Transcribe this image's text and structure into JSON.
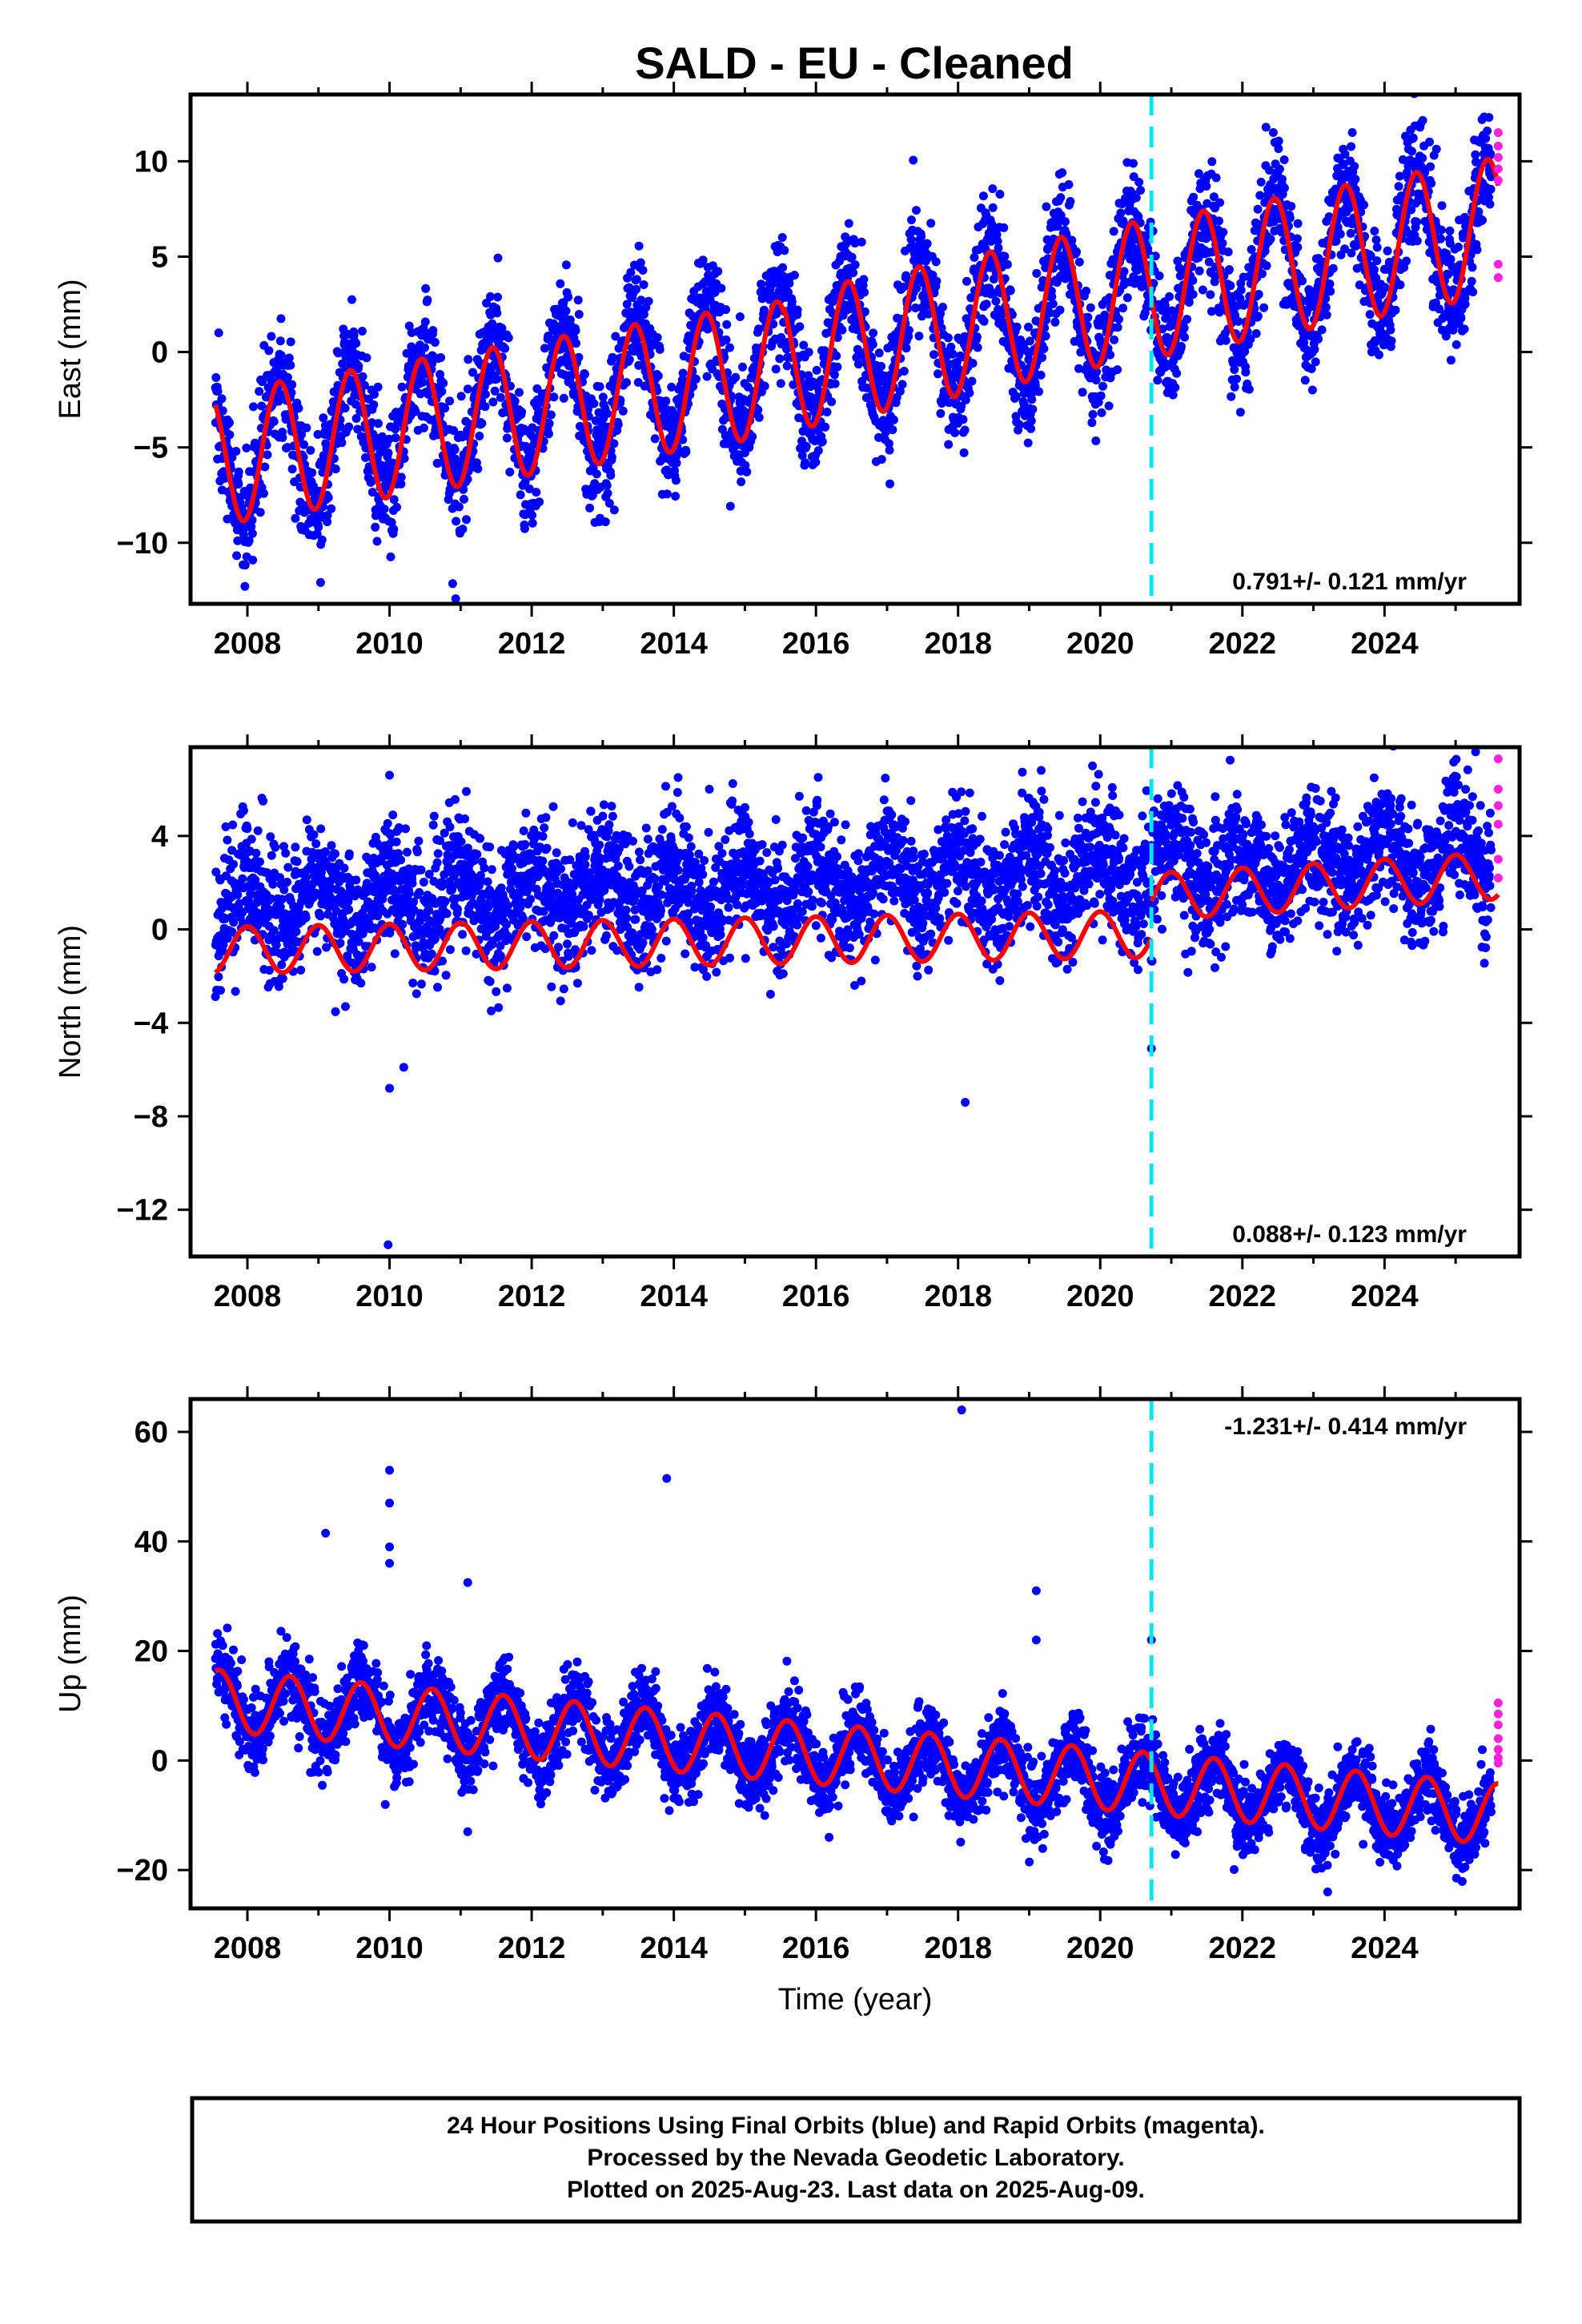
{
  "title": "SALD  - EU - Cleaned",
  "footer": {
    "line1": "24 Hour Positions Using Final Orbits (blue) and Rapid Orbits (magenta).",
    "line2": "Processed by the Nevada Geodetic Laboratory.",
    "line3": "Plotted on 2025-Aug-23. Last data on 2025-Aug-09."
  },
  "colors": {
    "final_orbits": "#0000ff",
    "rapid_orbits": "#ff22dd",
    "model_fit": "#ff0000",
    "equipment_change": "#00e5ee"
  },
  "chart_data": [
    {
      "type": "scatter",
      "xlabel": "",
      "ylabel": "East (mm)",
      "xlim": [
        2007.2,
        2025.9
      ],
      "ylim": [
        -13.2,
        13.5
      ],
      "xticks": [
        "2008",
        "2010",
        "2012",
        "2014",
        "2016",
        "2018",
        "2020",
        "2022",
        "2024"
      ],
      "yticks": [
        "10",
        "5",
        "0",
        "−5",
        "−10"
      ],
      "ytick_values": [
        10,
        5,
        0,
        -5,
        -10
      ],
      "rate": "0.791+/- 0.121 mm/yr",
      "rate_position": "bottom-right",
      "equipment_change_year": 2020.72,
      "series": [
        {
          "role": "final-orbits",
          "color": "#0000ff",
          "x_range": [
            2007.55,
            2025.5
          ],
          "trend_start": -5.6,
          "trend_end": 6.5,
          "amplitude": 3.5,
          "phase_peak": 0.45,
          "noise": 1.6
        },
        {
          "role": "rapid-orbits",
          "color": "#ff22dd",
          "x": [
            2025.6,
            2025.6,
            2025.6,
            2025.6,
            2025.6,
            2025.6,
            2025.6
          ],
          "y": [
            11.5,
            10.8,
            10.2,
            9.6,
            9.0,
            4.6,
            3.9
          ]
        },
        {
          "role": "model-fit",
          "color": "#ff0000",
          "segments": [
            {
              "x_range": [
                2007.55,
                2015.55
              ],
              "trend_start": -5.6,
              "trend_end": -0.8,
              "amplitude": 3.5,
              "phase_peak": 0.45
            },
            {
              "x_range": [
                2015.55,
                2020.72
              ],
              "trend_start": -0.6,
              "trend_end": 3.4,
              "amplitude": 3.6,
              "phase_peak": 0.45
            },
            {
              "x_range": [
                2020.72,
                2025.6
              ],
              "trend_start": 3.3,
              "trend_end": 6.6,
              "amplitude": 3.6,
              "phase_peak": 0.45
            }
          ]
        }
      ]
    },
    {
      "type": "scatter",
      "xlabel": "",
      "ylabel": "North (mm)",
      "xlim": [
        2007.2,
        2025.9
      ],
      "ylim": [
        -14.0,
        7.8
      ],
      "xticks": [
        "2008",
        "2010",
        "2012",
        "2014",
        "2016",
        "2018",
        "2020",
        "2022",
        "2024"
      ],
      "yticks": [
        "4",
        "0",
        "−4",
        "−8",
        "−12"
      ],
      "ytick_values": [
        4,
        0,
        -4,
        -8,
        -12
      ],
      "rate": "0.088+/- 0.123 mm/yr",
      "rate_position": "bottom-right",
      "equipment_change_year": 2020.72,
      "series": [
        {
          "role": "final-orbits",
          "color": "#0000ff",
          "x_range": [
            2007.55,
            2025.5
          ],
          "trend_start": 1.0,
          "trend_end": 3.0,
          "amplitude": 1.1,
          "phase_peak": 0.0,
          "noise": 1.4
        },
        {
          "role": "rapid-orbits",
          "color": "#ff22dd",
          "x": [
            2025.6,
            2025.6,
            2025.6,
            2025.6,
            2025.6,
            2025.6
          ],
          "y": [
            7.3,
            6.0,
            5.3,
            4.5,
            3.0,
            2.2
          ]
        },
        {
          "role": "model-fit",
          "color": "#ff0000",
          "segments": [
            {
              "x_range": [
                2007.55,
                2020.72
              ],
              "trend_start": -0.9,
              "trend_end": -0.2,
              "amplitude": 1.0,
              "phase_peak": 0.0
            },
            {
              "x_range": [
                2020.72,
                2025.6
              ],
              "trend_start": 1.4,
              "trend_end": 2.3,
              "amplitude": 1.0,
              "phase_peak": 0.0
            }
          ]
        }
      ],
      "outliers": [
        {
          "x": 2009.98,
          "y": -13.5
        },
        {
          "x": 2010.0,
          "y": -6.8
        },
        {
          "x": 2010.2,
          "y": -5.9
        },
        {
          "x": 2010.0,
          "y": 6.6
        },
        {
          "x": 2014.5,
          "y": 6.0
        },
        {
          "x": 2018.1,
          "y": -7.4
        },
        {
          "x": 2020.72,
          "y": -5.1
        }
      ]
    },
    {
      "type": "scatter",
      "xlabel": "Time (year)",
      "ylabel": "Up (mm)",
      "xlim": [
        2007.2,
        2025.9
      ],
      "ylim": [
        -27,
        66
      ],
      "xticks": [
        "2008",
        "2010",
        "2012",
        "2014",
        "2016",
        "2018",
        "2020",
        "2022",
        "2024"
      ],
      "yticks": [
        "60",
        "40",
        "20",
        "0",
        "−20"
      ],
      "ytick_values": [
        60,
        40,
        20,
        0,
        -20
      ],
      "rate": "-1.231+/- 0.414 mm/yr",
      "rate_position": "top-right",
      "equipment_change_year": 2020.72,
      "series": [
        {
          "role": "final-orbits",
          "color": "#0000ff",
          "x_range": [
            2007.55,
            2025.5
          ],
          "trend_start": 11.0,
          "trend_end": -10.0,
          "amplitude": 5.5,
          "phase_peak": 0.6,
          "noise": 3.4
        },
        {
          "role": "rapid-orbits",
          "color": "#ff22dd",
          "x": [
            2025.6,
            2025.6,
            2025.6,
            2025.6,
            2025.6,
            2025.6,
            2025.6
          ],
          "y": [
            10.5,
            8.5,
            6.5,
            4.0,
            2.0,
            0.5,
            -0.5
          ]
        },
        {
          "role": "model-fit",
          "color": "#ff0000",
          "segments": [
            {
              "x_range": [
                2007.55,
                2025.6
              ],
              "trend_start": 11.0,
              "trend_end": -9.8,
              "amplitude": 5.6,
              "phase_peak": 0.6
            }
          ]
        }
      ],
      "outliers": [
        {
          "x": 2018.05,
          "y": 64
        },
        {
          "x": 2010.0,
          "y": 53
        },
        {
          "x": 2013.9,
          "y": 51.5
        },
        {
          "x": 2010.0,
          "y": 47
        },
        {
          "x": 2009.1,
          "y": 41.5
        },
        {
          "x": 2010.0,
          "y": 39
        },
        {
          "x": 2010.0,
          "y": 36
        },
        {
          "x": 2011.1,
          "y": 32.5
        },
        {
          "x": 2019.1,
          "y": 31
        },
        {
          "x": 2019.1,
          "y": 22
        },
        {
          "x": 2020.72,
          "y": 22
        },
        {
          "x": 2011.1,
          "y": -13
        },
        {
          "x": 2023.2,
          "y": -24
        }
      ]
    }
  ]
}
